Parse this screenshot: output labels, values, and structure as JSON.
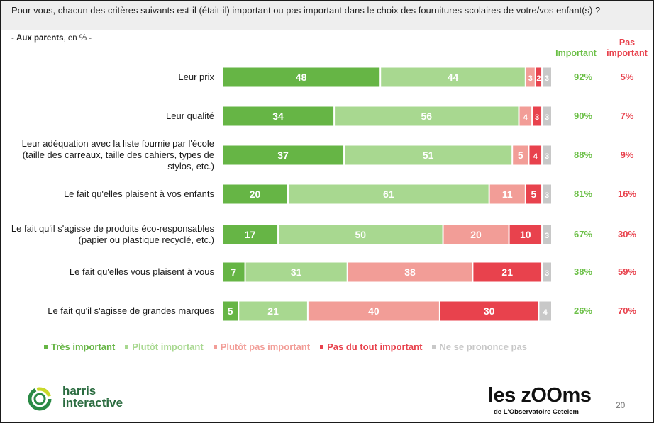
{
  "question": "Pour vous, chacun des critères suivants est-il (était-il) important ou pas important dans le choix des fournitures scolaires de votre/vos enfant(s) ?",
  "sample_bold": "Aux parents",
  "sample_rest": ", en % -",
  "sample_prefix": "- ",
  "headers": {
    "important": "Important",
    "pas_important": "Pas important"
  },
  "colors": {
    "tres_important": "#66b545",
    "plutot_important": "#a8d890",
    "plutot_pas_important": "#f29d97",
    "pas_du_tout_important": "#e8424d",
    "ne_se_prononce_pas": "#c8c8c8",
    "important_total": "#6abf45",
    "pas_important_total": "#e8424d"
  },
  "chart_data": {
    "type": "bar",
    "orientation": "horizontal",
    "stacked": true,
    "categories": [
      "Leur prix",
      "Leur qualité",
      "Leur adéquation avec la liste fournie par l'école (taille des carreaux, taille des cahiers, types de stylos, etc.)",
      "Le fait qu'elles plaisent à vos enfants",
      "Le fait qu'il s'agisse de produits éco-responsables (papier ou plastique recyclé, etc.)",
      "Le fait qu'elles vous plaisent à vous",
      "Le fait qu'il s'agisse de grandes marques"
    ],
    "series": [
      {
        "name": "Très important",
        "values": [
          48,
          34,
          37,
          20,
          17,
          7,
          5
        ]
      },
      {
        "name": "Plutôt important",
        "values": [
          44,
          56,
          51,
          61,
          50,
          31,
          21
        ]
      },
      {
        "name": "Plutôt pas important",
        "values": [
          3,
          4,
          5,
          11,
          20,
          38,
          40
        ]
      },
      {
        "name": "Pas du tout important",
        "values": [
          2,
          3,
          4,
          5,
          10,
          21,
          30
        ]
      },
      {
        "name": "Ne se prononce pas",
        "values": [
          3,
          3,
          3,
          3,
          3,
          3,
          4
        ]
      }
    ],
    "totals_important": [
      "92%",
      "90%",
      "88%",
      "81%",
      "67%",
      "38%",
      "26%"
    ],
    "totals_pas_important": [
      "5%",
      "7%",
      "9%",
      "16%",
      "30%",
      "59%",
      "70%"
    ],
    "legend_position": "bottom",
    "grid": false
  },
  "footer": {
    "harris_line1": "harris",
    "harris_line2": "interactive",
    "zooms_title": "les zOOms",
    "zooms_sub": "de L'Observatoire Cetelem",
    "page_number": "20"
  }
}
